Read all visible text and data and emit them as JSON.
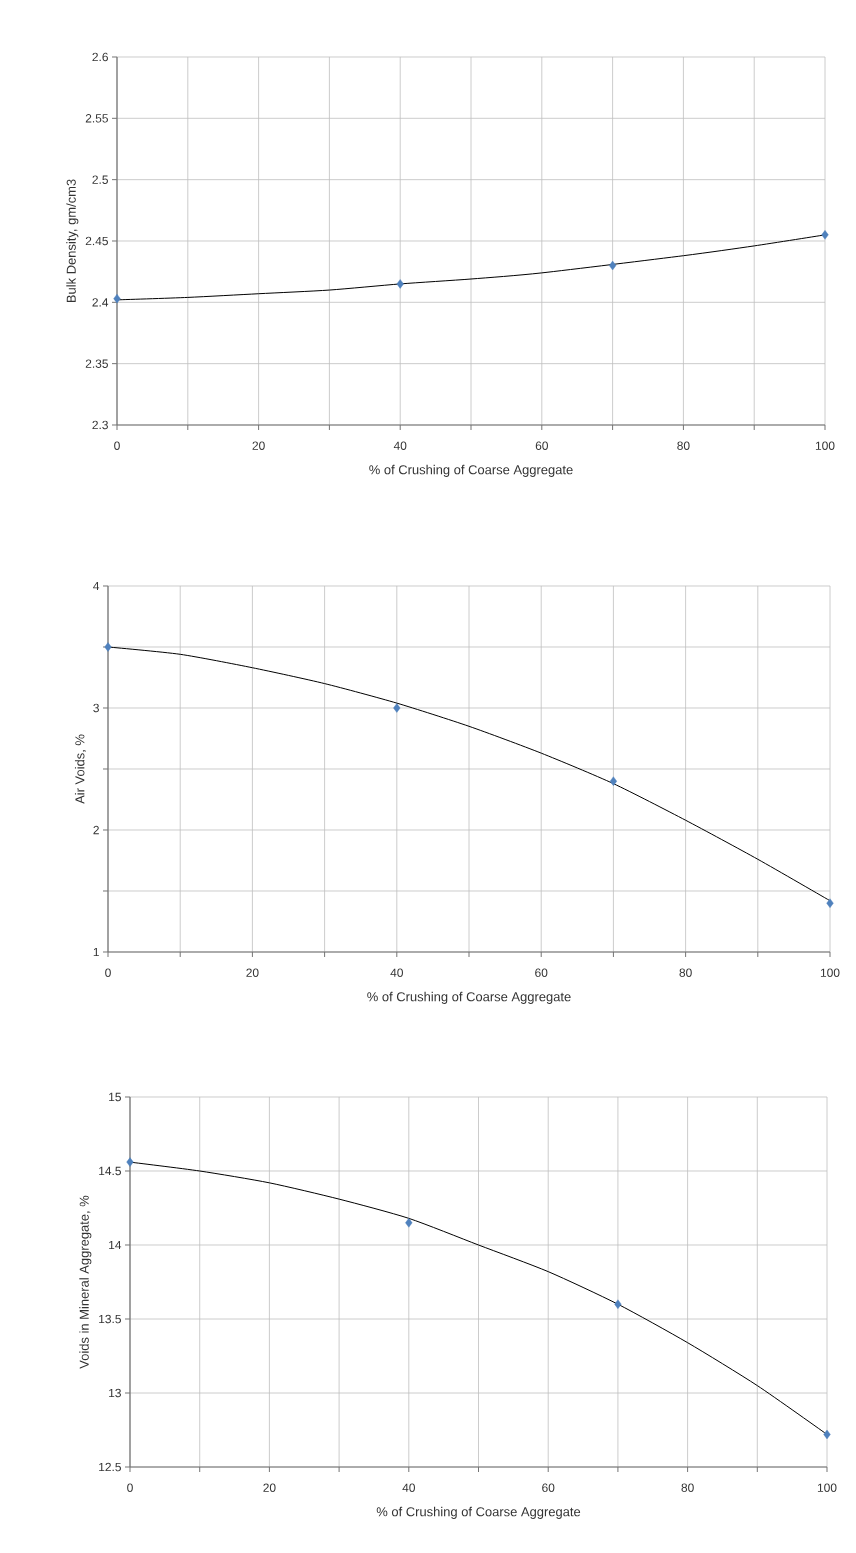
{
  "chart_data": [
    {
      "type": "scatter",
      "xlabel": "% of Crushing of Coarse Aggregate",
      "ylabel": "Bulk Density, gm/cm3",
      "xlim": [
        0,
        100
      ],
      "ylim": [
        2.3,
        2.6
      ],
      "xticks": [
        0,
        {
          "value": 10,
          "label": null
        },
        20,
        {
          "value": 30,
          "label": null
        },
        40,
        {
          "value": 50,
          "label": null
        },
        60,
        {
          "value": 70,
          "label": null
        },
        80,
        {
          "value": 90,
          "label": null
        },
        100
      ],
      "yticks": [
        2.3,
        2.35,
        2.4,
        2.45,
        2.5,
        2.55,
        2.6
      ],
      "grid": true,
      "series": [
        {
          "type": "scatter",
          "marker": "diamond",
          "color": "#4f81bd",
          "x": [
            0,
            40,
            70,
            100
          ],
          "values": [
            2.403,
            2.415,
            2.43,
            2.455
          ]
        },
        {
          "type": "line",
          "marker": "none",
          "color": "#000000",
          "x": [
            0,
            10,
            20,
            30,
            40,
            50,
            60,
            80,
            90,
            100
          ],
          "values": [
            2.402,
            2.404,
            2.407,
            2.41,
            2.415,
            2.419,
            2.424,
            2.438,
            2.446,
            2.455
          ]
        }
      ]
    },
    {
      "type": "scatter",
      "xlabel": "% of Crushing of Coarse Aggregate",
      "ylabel": "Air Voids, %",
      "xlim": [
        0,
        100
      ],
      "ylim": [
        1,
        4
      ],
      "xticks": [
        0,
        {
          "value": 10,
          "label": null
        },
        20,
        {
          "value": 30,
          "label": null
        },
        40,
        {
          "value": 50,
          "label": null
        },
        60,
        {
          "value": 70,
          "label": null
        },
        80,
        {
          "value": 90,
          "label": null
        },
        100
      ],
      "yticks": [
        1,
        {
          "value": 1.5,
          "label": null
        },
        2,
        {
          "value": 2.5,
          "label": null
        },
        3,
        {
          "value": 3.5,
          "label": null
        },
        4
      ],
      "grid": true,
      "series": [
        {
          "type": "scatter",
          "marker": "diamond",
          "color": "#4f81bd",
          "x": [
            0,
            40,
            70,
            100
          ],
          "values": [
            3.5,
            3.0,
            2.4,
            1.4
          ]
        },
        {
          "type": "line",
          "marker": "none",
          "color": "#000000",
          "x": [
            0,
            10,
            20,
            30,
            40,
            50,
            60,
            70,
            80,
            90,
            100
          ],
          "values": [
            3.5,
            3.44,
            3.33,
            3.2,
            3.04,
            2.85,
            2.63,
            2.38,
            2.08,
            1.76,
            1.42
          ]
        }
      ]
    },
    {
      "type": "scatter",
      "xlabel": "% of Crushing of Coarse Aggregate",
      "ylabel": "Voids in Mineral Aggregate, %",
      "xlim": [
        0,
        100
      ],
      "ylim": [
        12.5,
        15
      ],
      "xticks": [
        0,
        {
          "value": 10,
          "label": null
        },
        20,
        {
          "value": 30,
          "label": null
        },
        40,
        {
          "value": 50,
          "label": null
        },
        60,
        {
          "value": 70,
          "label": null
        },
        80,
        {
          "value": 90,
          "label": null
        },
        100
      ],
      "yticks": [
        12.5,
        13,
        13.5,
        14,
        14.5,
        15
      ],
      "grid": true,
      "series": [
        {
          "type": "scatter",
          "marker": "diamond",
          "color": "#4f81bd",
          "x": [
            0,
            40,
            70,
            100
          ],
          "values": [
            14.56,
            14.15,
            13.6,
            12.72
          ]
        },
        {
          "type": "line",
          "marker": "none",
          "color": "#000000",
          "x": [
            0,
            10,
            20,
            30,
            40,
            50,
            60,
            70,
            80,
            90,
            100
          ],
          "values": [
            14.56,
            14.5,
            14.42,
            14.31,
            14.18,
            14.0,
            13.82,
            13.6,
            13.34,
            13.05,
            12.72
          ]
        }
      ]
    }
  ]
}
